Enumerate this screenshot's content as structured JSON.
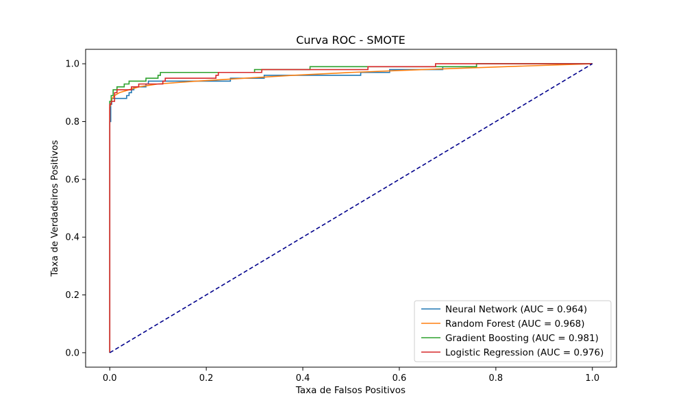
{
  "chart_data": {
    "type": "line",
    "title": "Curva ROC - SMOTE",
    "xlabel": "Taxa de Falsos Positivos",
    "ylabel": "Taxa de Verdadeiros Positivos",
    "xlim": [
      -0.05,
      1.05
    ],
    "ylim": [
      -0.05,
      1.05
    ],
    "xticks": [
      0.0,
      0.2,
      0.4,
      0.6,
      0.8,
      1.0
    ],
    "yticks": [
      0.0,
      0.2,
      0.4,
      0.6,
      0.8,
      1.0
    ],
    "tick_labels_x": [
      "0.0",
      "0.2",
      "0.4",
      "0.6",
      "0.8",
      "1.0"
    ],
    "tick_labels_y": [
      "0.0",
      "0.2",
      "0.4",
      "0.6",
      "0.8",
      "1.0"
    ],
    "grid": false,
    "legend_position": "bottom-right",
    "series": [
      {
        "name": "Neural Network (AUC = 0.964)",
        "color": "#1f77b4",
        "points": [
          [
            0,
            0
          ],
          [
            0,
            0.8
          ],
          [
            0.002,
            0.8
          ],
          [
            0.002,
            0.86
          ],
          [
            0.004,
            0.86
          ],
          [
            0.004,
            0.88
          ],
          [
            0.035,
            0.88
          ],
          [
            0.035,
            0.89
          ],
          [
            0.04,
            0.89
          ],
          [
            0.04,
            0.9
          ],
          [
            0.045,
            0.9
          ],
          [
            0.045,
            0.91
          ],
          [
            0.05,
            0.91
          ],
          [
            0.05,
            0.92
          ],
          [
            0.075,
            0.92
          ],
          [
            0.075,
            0.93
          ],
          [
            0.08,
            0.93
          ],
          [
            0.08,
            0.94
          ],
          [
            0.25,
            0.94
          ],
          [
            0.25,
            0.95
          ],
          [
            0.32,
            0.95
          ],
          [
            0.32,
            0.96
          ],
          [
            0.52,
            0.96
          ],
          [
            0.52,
            0.97
          ],
          [
            0.58,
            0.97
          ],
          [
            0.58,
            0.98
          ],
          [
            0.69,
            0.98
          ],
          [
            0.69,
            0.99
          ],
          [
            0.76,
            0.99
          ],
          [
            0.76,
            1.0
          ],
          [
            1.0,
            1.0
          ]
        ]
      },
      {
        "name": "Random Forest (AUC = 0.968)",
        "color": "#ff7f0e",
        "points": [
          [
            0,
            0
          ],
          [
            0,
            0.85
          ],
          [
            0.002,
            0.86
          ],
          [
            0.005,
            0.88
          ],
          [
            0.01,
            0.89
          ],
          [
            0.02,
            0.9
          ],
          [
            0.04,
            0.91
          ],
          [
            0.06,
            0.92
          ],
          [
            0.1,
            0.93
          ],
          [
            0.18,
            0.94
          ],
          [
            0.28,
            0.95
          ],
          [
            0.38,
            0.96
          ],
          [
            0.5,
            0.97
          ],
          [
            0.65,
            0.98
          ],
          [
            0.82,
            0.99
          ],
          [
            1.0,
            1.0
          ]
        ]
      },
      {
        "name": "Gradient Boosting (AUC = 0.981)",
        "color": "#2ca02c",
        "points": [
          [
            0,
            0
          ],
          [
            0,
            0.87
          ],
          [
            0.003,
            0.87
          ],
          [
            0.003,
            0.89
          ],
          [
            0.007,
            0.89
          ],
          [
            0.007,
            0.91
          ],
          [
            0.015,
            0.91
          ],
          [
            0.015,
            0.92
          ],
          [
            0.03,
            0.92
          ],
          [
            0.03,
            0.93
          ],
          [
            0.04,
            0.93
          ],
          [
            0.04,
            0.94
          ],
          [
            0.075,
            0.94
          ],
          [
            0.075,
            0.95
          ],
          [
            0.1,
            0.95
          ],
          [
            0.1,
            0.96
          ],
          [
            0.105,
            0.96
          ],
          [
            0.105,
            0.97
          ],
          [
            0.3,
            0.97
          ],
          [
            0.3,
            0.98
          ],
          [
            0.415,
            0.98
          ],
          [
            0.415,
            0.99
          ],
          [
            0.76,
            0.99
          ],
          [
            0.76,
            1.0
          ],
          [
            1.0,
            1.0
          ]
        ]
      },
      {
        "name": "Logistic Regression (AUC = 0.976)",
        "color": "#d62728",
        "points": [
          [
            0,
            0
          ],
          [
            0,
            0.86
          ],
          [
            0.003,
            0.86
          ],
          [
            0.003,
            0.87
          ],
          [
            0.01,
            0.87
          ],
          [
            0.01,
            0.9
          ],
          [
            0.015,
            0.9
          ],
          [
            0.015,
            0.91
          ],
          [
            0.045,
            0.91
          ],
          [
            0.045,
            0.92
          ],
          [
            0.06,
            0.92
          ],
          [
            0.06,
            0.93
          ],
          [
            0.11,
            0.93
          ],
          [
            0.11,
            0.94
          ],
          [
            0.115,
            0.94
          ],
          [
            0.115,
            0.95
          ],
          [
            0.22,
            0.95
          ],
          [
            0.22,
            0.96
          ],
          [
            0.225,
            0.96
          ],
          [
            0.225,
            0.97
          ],
          [
            0.315,
            0.97
          ],
          [
            0.315,
            0.98
          ],
          [
            0.535,
            0.98
          ],
          [
            0.535,
            0.99
          ],
          [
            0.675,
            0.99
          ],
          [
            0.675,
            1.0
          ],
          [
            1.0,
            1.0
          ]
        ]
      }
    ],
    "reference_line": {
      "color": "#00008b",
      "style": "dashed",
      "points": [
        [
          0,
          0
        ],
        [
          1,
          1
        ]
      ]
    }
  }
}
